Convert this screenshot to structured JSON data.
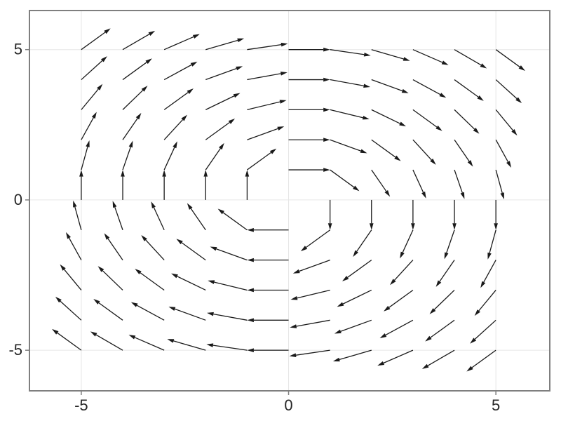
{
  "figure": {
    "title": "",
    "background_color": "#ffffff"
  },
  "chart_data": {
    "type": "quiver",
    "title": "",
    "xlabel": "",
    "ylabel": "",
    "field": "u = y/sqrt(x^2+y^2), v = -x/sqrt(x^2+y^2) (clockwise rotation, unit-length arrows)",
    "grid": {
      "x_min": -5,
      "x_max": 5,
      "y_min": -5,
      "y_max": 5,
      "step": 1,
      "origin_excluded": true
    },
    "xlim": [
      -6.25,
      6.3
    ],
    "ylim": [
      -6.35,
      6.3
    ],
    "grid_on": true,
    "x_ticks": {
      "values": [
        -5,
        0,
        5
      ],
      "labels": [
        "-5",
        "0",
        "5"
      ]
    },
    "y_ticks": {
      "values": [
        -5,
        0,
        5
      ],
      "labels": [
        "-5",
        "0",
        "5"
      ]
    },
    "style": {
      "arrow_color": "#1a1a1a",
      "arrow_stroke_width": 1.3,
      "grid_color": "#e6e6e6",
      "frame_color": "#7f7f7f",
      "tick_color": "#7f7f7f",
      "tick_label_color": "#262626",
      "background": "#ffffff"
    },
    "points": [
      [
        -5,
        5,
        0.707,
        0.707
      ],
      [
        -4,
        5,
        0.781,
        0.625
      ],
      [
        -3,
        5,
        0.857,
        0.514
      ],
      [
        -2,
        5,
        0.928,
        0.371
      ],
      [
        -1,
        5,
        0.981,
        0.196
      ],
      [
        0,
        5,
        1,
        0
      ],
      [
        1,
        5,
        0.981,
        -0.196
      ],
      [
        2,
        5,
        0.928,
        -0.371
      ],
      [
        3,
        5,
        0.857,
        -0.514
      ],
      [
        4,
        5,
        0.781,
        -0.625
      ],
      [
        5,
        5,
        0.707,
        -0.707
      ],
      [
        -5,
        4,
        0.625,
        0.781
      ],
      [
        -4,
        4,
        0.707,
        0.707
      ],
      [
        -3,
        4,
        0.8,
        0.6
      ],
      [
        -2,
        4,
        0.894,
        0.447
      ],
      [
        -1,
        4,
        0.97,
        0.243
      ],
      [
        0,
        4,
        1,
        0
      ],
      [
        1,
        4,
        0.97,
        -0.243
      ],
      [
        2,
        4,
        0.894,
        -0.447
      ],
      [
        3,
        4,
        0.8,
        -0.6
      ],
      [
        4,
        4,
        0.707,
        -0.707
      ],
      [
        5,
        4,
        0.625,
        -0.781
      ],
      [
        -5,
        3,
        0.514,
        0.857
      ],
      [
        -4,
        3,
        0.6,
        0.8
      ],
      [
        -3,
        3,
        0.707,
        0.707
      ],
      [
        -2,
        3,
        0.832,
        0.555
      ],
      [
        -1,
        3,
        0.949,
        0.316
      ],
      [
        0,
        3,
        1,
        0
      ],
      [
        1,
        3,
        0.949,
        -0.316
      ],
      [
        2,
        3,
        0.832,
        -0.555
      ],
      [
        3,
        3,
        0.707,
        -0.707
      ],
      [
        4,
        3,
        0.6,
        -0.8
      ],
      [
        5,
        3,
        0.514,
        -0.857
      ],
      [
        -5,
        2,
        0.371,
        0.928
      ],
      [
        -4,
        2,
        0.447,
        0.894
      ],
      [
        -3,
        2,
        0.555,
        0.832
      ],
      [
        -2,
        2,
        0.707,
        0.707
      ],
      [
        -1,
        2,
        0.894,
        0.447
      ],
      [
        0,
        2,
        1,
        0
      ],
      [
        1,
        2,
        0.894,
        -0.447
      ],
      [
        2,
        2,
        0.707,
        -0.707
      ],
      [
        3,
        2,
        0.555,
        -0.832
      ],
      [
        4,
        2,
        0.447,
        -0.894
      ],
      [
        5,
        2,
        0.371,
        -0.928
      ],
      [
        -5,
        1,
        0.196,
        0.981
      ],
      [
        -4,
        1,
        0.243,
        0.97
      ],
      [
        -3,
        1,
        0.316,
        0.949
      ],
      [
        -2,
        1,
        0.447,
        0.894
      ],
      [
        -1,
        1,
        0.707,
        0.707
      ],
      [
        0,
        1,
        1,
        0
      ],
      [
        1,
        1,
        0.707,
        -0.707
      ],
      [
        2,
        1,
        0.447,
        -0.894
      ],
      [
        3,
        1,
        0.316,
        -0.949
      ],
      [
        4,
        1,
        0.243,
        -0.97
      ],
      [
        5,
        1,
        0.196,
        -0.981
      ],
      [
        -5,
        0,
        0,
        1
      ],
      [
        -4,
        0,
        0,
        1
      ],
      [
        -3,
        0,
        0,
        1
      ],
      [
        -2,
        0,
        0,
        1
      ],
      [
        -1,
        0,
        0,
        1
      ],
      [
        1,
        0,
        0,
        -1
      ],
      [
        2,
        0,
        0,
        -1
      ],
      [
        3,
        0,
        0,
        -1
      ],
      [
        4,
        0,
        0,
        -1
      ],
      [
        5,
        0,
        0,
        -1
      ],
      [
        -5,
        -1,
        -0.196,
        0.981
      ],
      [
        -4,
        -1,
        -0.243,
        0.97
      ],
      [
        -3,
        -1,
        -0.316,
        0.949
      ],
      [
        -2,
        -1,
        -0.447,
        0.894
      ],
      [
        -1,
        -1,
        -0.707,
        0.707
      ],
      [
        0,
        -1,
        -1,
        0
      ],
      [
        1,
        -1,
        -0.707,
        -0.707
      ],
      [
        2,
        -1,
        -0.447,
        -0.894
      ],
      [
        3,
        -1,
        -0.316,
        -0.949
      ],
      [
        4,
        -1,
        -0.243,
        -0.97
      ],
      [
        5,
        -1,
        -0.196,
        -0.981
      ],
      [
        -5,
        -2,
        -0.371,
        0.928
      ],
      [
        -4,
        -2,
        -0.447,
        0.894
      ],
      [
        -3,
        -2,
        -0.555,
        0.832
      ],
      [
        -2,
        -2,
        -0.707,
        0.707
      ],
      [
        -1,
        -2,
        -0.894,
        0.447
      ],
      [
        0,
        -2,
        -1,
        0
      ],
      [
        1,
        -2,
        -0.894,
        -0.447
      ],
      [
        2,
        -2,
        -0.707,
        -0.707
      ],
      [
        3,
        -2,
        -0.555,
        -0.832
      ],
      [
        4,
        -2,
        -0.447,
        -0.894
      ],
      [
        5,
        -2,
        -0.371,
        -0.928
      ],
      [
        -5,
        -3,
        -0.514,
        0.857
      ],
      [
        -4,
        -3,
        -0.6,
        0.8
      ],
      [
        -3,
        -3,
        -0.707,
        0.707
      ],
      [
        -2,
        -3,
        -0.832,
        0.555
      ],
      [
        -1,
        -3,
        -0.949,
        0.316
      ],
      [
        0,
        -3,
        -1,
        0
      ],
      [
        1,
        -3,
        -0.949,
        -0.316
      ],
      [
        2,
        -3,
        -0.832,
        -0.555
      ],
      [
        3,
        -3,
        -0.707,
        -0.707
      ],
      [
        4,
        -3,
        -0.6,
        -0.8
      ],
      [
        5,
        -3,
        -0.514,
        -0.857
      ],
      [
        -5,
        -4,
        -0.625,
        0.781
      ],
      [
        -4,
        -4,
        -0.707,
        0.707
      ],
      [
        -3,
        -4,
        -0.8,
        0.6
      ],
      [
        -2,
        -4,
        -0.894,
        0.447
      ],
      [
        -1,
        -4,
        -0.97,
        0.243
      ],
      [
        0,
        -4,
        -1,
        0
      ],
      [
        1,
        -4,
        -0.97,
        -0.243
      ],
      [
        2,
        -4,
        -0.894,
        -0.447
      ],
      [
        3,
        -4,
        -0.8,
        -0.6
      ],
      [
        4,
        -4,
        -0.707,
        -0.707
      ],
      [
        5,
        -4,
        -0.625,
        -0.781
      ],
      [
        -5,
        -5,
        -0.707,
        0.707
      ],
      [
        -4,
        -5,
        -0.781,
        0.625
      ],
      [
        -3,
        -5,
        -0.857,
        0.514
      ],
      [
        -2,
        -5,
        -0.928,
        0.371
      ],
      [
        -1,
        -5,
        -0.981,
        0.196
      ],
      [
        0,
        -5,
        -1,
        0
      ],
      [
        1,
        -5,
        -0.981,
        -0.196
      ],
      [
        2,
        -5,
        -0.928,
        -0.371
      ],
      [
        3,
        -5,
        -0.857,
        -0.514
      ],
      [
        4,
        -5,
        -0.781,
        -0.625
      ],
      [
        5,
        -5,
        -0.707,
        -0.707
      ]
    ]
  }
}
